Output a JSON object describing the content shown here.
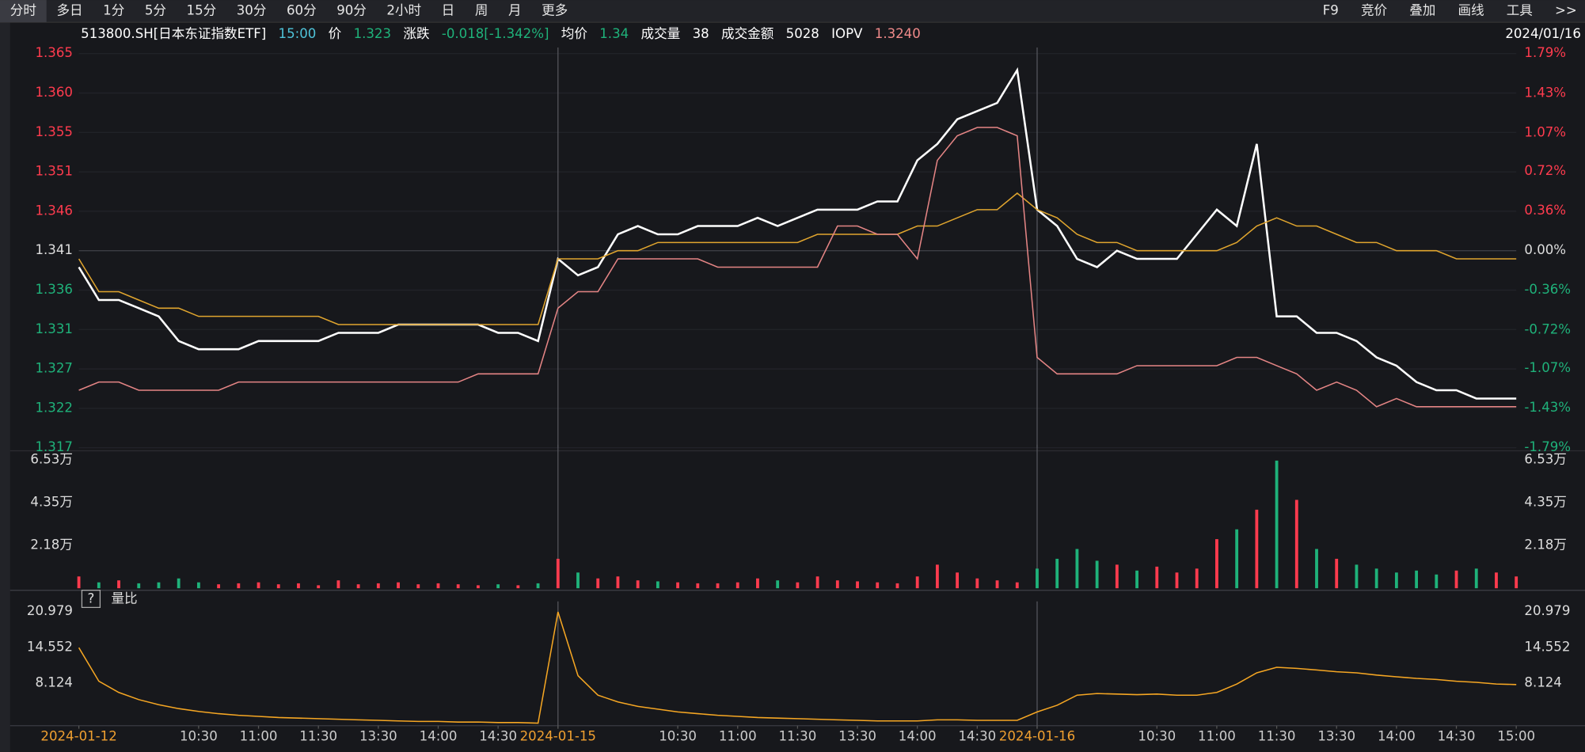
{
  "toolbar": {
    "left": [
      "分时",
      "多日",
      "1分",
      "5分",
      "15分",
      "30分",
      "60分",
      "90分",
      "2小时",
      "日",
      "周",
      "月",
      "更多"
    ],
    "right": [
      "F9",
      "竞价",
      "叠加",
      "画线",
      "工具",
      ">>"
    ]
  },
  "info_bar": {
    "symbol": "513800.SH[日本东证指数ETF]",
    "time": "15:00",
    "price_label": "价",
    "price": "1.323",
    "change_label": "涨跌",
    "change": "-0.018[-1.342%]",
    "avg_label": "均价",
    "avg": "1.34",
    "volume_label": "成交量",
    "volume": "38",
    "amount_label": "成交金额",
    "amount": "5028",
    "iopv_label": "IOPV",
    "iopv": "1.3240",
    "date": "2024/01/16"
  },
  "chart_data": [
    {
      "type": "line",
      "x": [
        0,
        10,
        20,
        30,
        40,
        50,
        60,
        70,
        80,
        90,
        100,
        110,
        120,
        130,
        140,
        150,
        160,
        170,
        180,
        190,
        200,
        210,
        220,
        230,
        240,
        250,
        260,
        270,
        280,
        290,
        300,
        310,
        320,
        330,
        340,
        350,
        360,
        370,
        380,
        390,
        400,
        410,
        420,
        430,
        440,
        450,
        460,
        470,
        480,
        490,
        500,
        510,
        520,
        530,
        540,
        550,
        560,
        570,
        580,
        590,
        600,
        610,
        620,
        630,
        640,
        650,
        660,
        670,
        680,
        690,
        700,
        710,
        720
      ],
      "xlim": [
        0,
        720
      ],
      "ylim": [
        1.317,
        1.365
      ],
      "yticks": [
        1.365,
        {
          "value": 1.3602,
          "label": "1.360"
        },
        {
          "value": 1.3554,
          "label": "1.355"
        },
        {
          "value": 1.3506,
          "label": "1.351"
        },
        {
          "value": 1.3458,
          "label": "1.346"
        },
        1.341,
        {
          "value": 1.3362,
          "label": "1.336"
        },
        {
          "value": 1.3314,
          "label": "1.331"
        },
        {
          "value": 1.3266,
          "label": "1.327"
        },
        {
          "value": 1.3218,
          "label": "1.322"
        },
        1.317
      ],
      "y2lim": [
        -1.79,
        1.79
      ],
      "y2ticks": [
        {
          "value": 1.79,
          "label": "1.79%"
        },
        {
          "value": 1.43,
          "label": "1.43%"
        },
        {
          "value": 1.07,
          "label": "1.07%"
        },
        {
          "value": 0.72,
          "label": "0.72%"
        },
        {
          "value": 0.36,
          "label": "0.36%"
        },
        {
          "value": 0,
          "label": "0.00%"
        },
        {
          "value": -0.36,
          "label": "-0.36%"
        },
        {
          "value": -0.72,
          "label": "-0.72%"
        },
        {
          "value": -1.07,
          "label": "-1.07%"
        },
        {
          "value": -1.43,
          "label": "-1.43%"
        },
        {
          "value": -1.79,
          "label": "-1.79%"
        }
      ],
      "grid": true,
      "up_color": "#ff3b4e",
      "down_color": "#1fb27a",
      "series": [
        {
          "color": "#ffffff",
          "values": [
            1.339,
            1.335,
            1.335,
            1.334,
            1.333,
            1.33,
            1.329,
            1.329,
            1.329,
            1.33,
            1.33,
            1.33,
            1.33,
            1.331,
            1.331,
            1.331,
            1.332,
            1.332,
            1.332,
            1.332,
            1.332,
            1.331,
            1.331,
            1.33,
            1.34,
            1.338,
            1.339,
            1.343,
            1.344,
            1.343,
            1.343,
            1.344,
            1.344,
            1.344,
            1.345,
            1.344,
            1.345,
            1.346,
            1.346,
            1.346,
            1.347,
            1.347,
            1.352,
            1.354,
            1.357,
            1.358,
            1.359,
            1.363,
            1.346,
            1.344,
            1.34,
            1.339,
            1.341,
            1.34,
            1.34,
            1.34,
            1.343,
            1.346,
            1.344,
            1.354,
            1.333,
            1.333,
            1.331,
            1.331,
            1.33,
            1.328,
            1.327,
            1.325,
            1.324,
            1.324,
            1.323,
            1.323,
            1.323
          ]
        },
        {
          "color": "#e0a52e",
          "values": [
            1.34,
            1.336,
            1.336,
            1.335,
            1.334,
            1.334,
            1.333,
            1.333,
            1.333,
            1.333,
            1.333,
            1.333,
            1.333,
            1.332,
            1.332,
            1.332,
            1.332,
            1.332,
            1.332,
            1.332,
            1.332,
            1.332,
            1.332,
            1.332,
            1.34,
            1.34,
            1.34,
            1.341,
            1.341,
            1.342,
            1.342,
            1.342,
            1.342,
            1.342,
            1.342,
            1.342,
            1.342,
            1.343,
            1.343,
            1.343,
            1.343,
            1.343,
            1.344,
            1.344,
            1.345,
            1.346,
            1.346,
            1.348,
            1.346,
            1.345,
            1.343,
            1.342,
            1.342,
            1.341,
            1.341,
            1.341,
            1.341,
            1.341,
            1.342,
            1.344,
            1.345,
            1.344,
            1.344,
            1.343,
            1.342,
            1.342,
            1.341,
            1.341,
            1.341,
            1.34,
            1.34,
            1.34,
            1.34
          ]
        },
        {
          "color": "#e58585",
          "values": [
            1.324,
            1.325,
            1.325,
            1.324,
            1.324,
            1.324,
            1.324,
            1.324,
            1.325,
            1.325,
            1.325,
            1.325,
            1.325,
            1.325,
            1.325,
            1.325,
            1.325,
            1.325,
            1.325,
            1.325,
            1.326,
            1.326,
            1.326,
            1.326,
            1.334,
            1.336,
            1.336,
            1.34,
            1.34,
            1.34,
            1.34,
            1.34,
            1.339,
            1.339,
            1.339,
            1.339,
            1.339,
            1.339,
            1.344,
            1.344,
            1.343,
            1.343,
            1.34,
            1.352,
            1.355,
            1.356,
            1.356,
            1.355,
            1.328,
            1.326,
            1.326,
            1.326,
            1.326,
            1.327,
            1.327,
            1.327,
            1.327,
            1.327,
            1.328,
            1.328,
            1.327,
            1.326,
            1.324,
            1.325,
            1.324,
            1.322,
            1.323,
            1.322,
            1.322,
            1.322,
            1.322,
            1.322,
            1.322
          ]
        }
      ]
    },
    {
      "type": "bar",
      "x": [
        0,
        10,
        20,
        30,
        40,
        50,
        60,
        70,
        80,
        90,
        100,
        110,
        120,
        130,
        140,
        150,
        160,
        170,
        180,
        190,
        200,
        210,
        220,
        230,
        240,
        250,
        260,
        270,
        280,
        290,
        300,
        310,
        320,
        330,
        340,
        350,
        360,
        370,
        380,
        390,
        400,
        410,
        420,
        430,
        440,
        450,
        460,
        470,
        480,
        490,
        500,
        510,
        520,
        530,
        540,
        550,
        560,
        570,
        580,
        590,
        600,
        610,
        620,
        630,
        640,
        650,
        660,
        670,
        680,
        690,
        700,
        710,
        720
      ],
      "xlim": [
        0,
        720
      ],
      "ylim": [
        0,
        70000
      ],
      "yticks": [
        {
          "value": 65300,
          "label": "6.53万"
        },
        {
          "value": 43500,
          "label": "4.35万"
        },
        {
          "value": 21800,
          "label": "2.18万"
        }
      ],
      "up_color": "#ff3b4e",
      "down_color": "#1fb27a",
      "values": [
        6000,
        3000,
        4000,
        2500,
        3000,
        5000,
        3000,
        2000,
        2500,
        3000,
        2000,
        2500,
        1500,
        4000,
        2000,
        2500,
        3000,
        2000,
        2500,
        2000,
        1500,
        2000,
        1500,
        2500,
        15000,
        8000,
        5000,
        6000,
        4000,
        3500,
        3000,
        2500,
        2500,
        3000,
        5000,
        4000,
        3000,
        6000,
        4000,
        3500,
        3000,
        2500,
        6000,
        12000,
        8000,
        5000,
        4000,
        3000,
        10000,
        15000,
        20000,
        14000,
        12000,
        9000,
        11000,
        8000,
        10000,
        25000,
        30000,
        40000,
        65000,
        45000,
        20000,
        15000,
        12000,
        10000,
        8000,
        9000,
        7000,
        9000,
        10000,
        8000,
        6000
      ]
    },
    {
      "type": "line",
      "title": "量比",
      "x": [
        0,
        10,
        20,
        30,
        40,
        50,
        60,
        70,
        80,
        90,
        100,
        110,
        120,
        130,
        140,
        150,
        160,
        170,
        180,
        190,
        200,
        210,
        220,
        230,
        240,
        250,
        260,
        270,
        280,
        290,
        300,
        310,
        320,
        330,
        340,
        350,
        360,
        370,
        380,
        390,
        400,
        410,
        420,
        430,
        440,
        450,
        460,
        470,
        480,
        490,
        500,
        510,
        520,
        530,
        540,
        550,
        560,
        570,
        580,
        590,
        600,
        610,
        620,
        630,
        640,
        650,
        660,
        670,
        680,
        690,
        700,
        710,
        720
      ],
      "xlim": [
        0,
        720
      ],
      "ylim": [
        0,
        21.7
      ],
      "yticks": [
        20.979,
        14.552,
        8.124
      ],
      "xticks": [
        {
          "value": 0,
          "label": "2024-01-12"
        },
        {
          "value": 60,
          "label": "10:30"
        },
        {
          "value": 90,
          "label": "11:00"
        },
        {
          "value": 120,
          "label": "11:30"
        },
        {
          "value": 150,
          "label": "13:30"
        },
        {
          "value": 180,
          "label": "14:00"
        },
        {
          "value": 210,
          "label": "14:30"
        },
        {
          "value": 240,
          "label": "2024-01-15"
        },
        {
          "value": 300,
          "label": "10:30"
        },
        {
          "value": 330,
          "label": "11:00"
        },
        {
          "value": 360,
          "label": "11:30"
        },
        {
          "value": 390,
          "label": "13:30"
        },
        {
          "value": 420,
          "label": "14:00"
        },
        {
          "value": 450,
          "label": "14:30"
        },
        {
          "value": 480,
          "label": "2024-01-16"
        },
        {
          "value": 540,
          "label": "10:30"
        },
        {
          "value": 570,
          "label": "11:00"
        },
        {
          "value": 600,
          "label": "11:30"
        },
        {
          "value": 630,
          "label": "13:30"
        },
        {
          "value": 660,
          "label": "14:00"
        },
        {
          "value": 690,
          "label": "14:30"
        },
        {
          "value": 720,
          "label": "15:00"
        }
      ],
      "series": [
        {
          "color": "#f5a623",
          "values": [
            14.5,
            8.5,
            6.5,
            5.2,
            4.3,
            3.6,
            3.1,
            2.7,
            2.4,
            2.2,
            2.0,
            1.9,
            1.8,
            1.7,
            1.6,
            1.5,
            1.4,
            1.3,
            1.3,
            1.2,
            1.2,
            1.1,
            1.1,
            1.0,
            20.9,
            9.5,
            6.0,
            4.8,
            4.0,
            3.5,
            3.0,
            2.7,
            2.4,
            2.2,
            2.0,
            1.9,
            1.8,
            1.7,
            1.6,
            1.5,
            1.4,
            1.4,
            1.4,
            1.6,
            1.6,
            1.5,
            1.5,
            1.5,
            3.0,
            4.2,
            6.0,
            6.3,
            6.2,
            6.1,
            6.2,
            6.0,
            6.0,
            6.5,
            8.0,
            10.0,
            11.0,
            10.8,
            10.5,
            10.2,
            10.0,
            9.6,
            9.3,
            9.0,
            8.8,
            8.5,
            8.3,
            8.0,
            7.9
          ]
        }
      ]
    }
  ]
}
